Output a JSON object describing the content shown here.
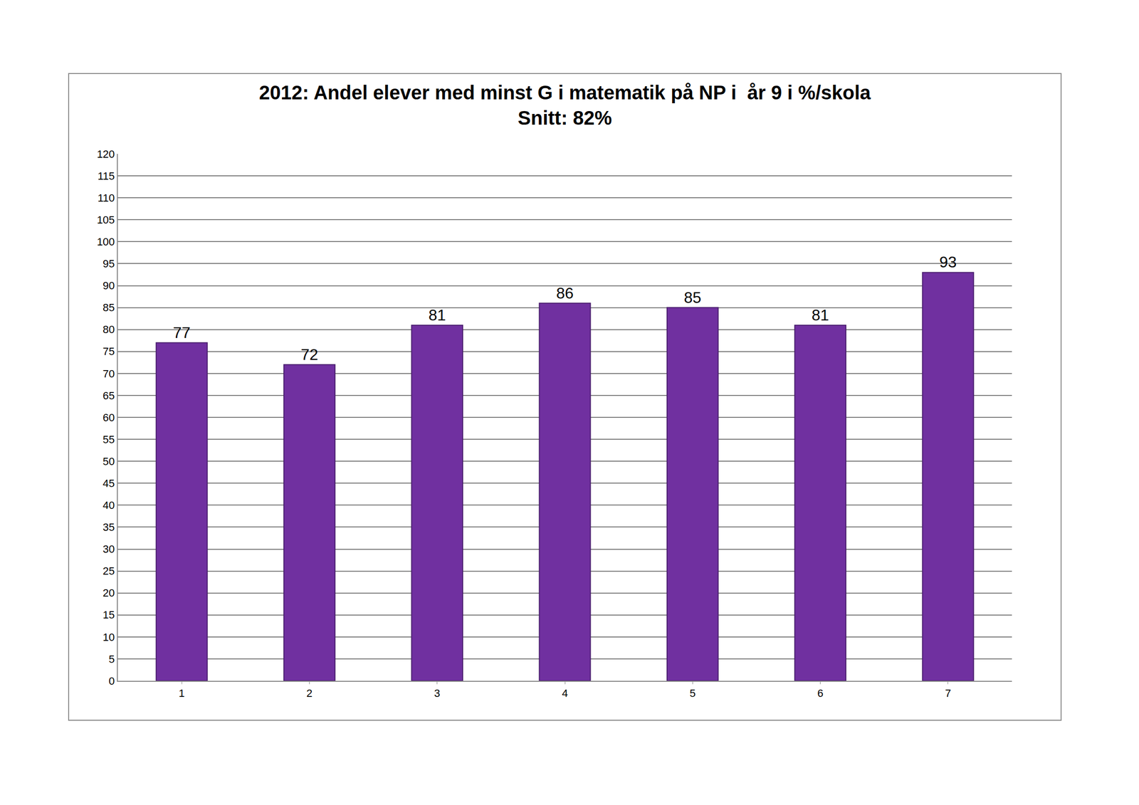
{
  "chart_data": {
    "type": "bar",
    "title": "2012: Andel elever med minst G i matematik på NP i  år 9 i %/skola",
    "subtitle": "Snitt: 82%",
    "categories": [
      "1",
      "2",
      "3",
      "4",
      "5",
      "6",
      "7"
    ],
    "values": [
      77,
      72,
      81,
      86,
      85,
      81,
      93
    ],
    "color": "#7030a0",
    "ylim": [
      0,
      120
    ],
    "yticks": [
      0,
      5,
      10,
      15,
      20,
      25,
      30,
      35,
      40,
      45,
      50,
      55,
      60,
      65,
      70,
      75,
      80,
      85,
      90,
      95,
      100,
      105,
      110,
      115,
      120
    ],
    "grid": true,
    "data_labels": true
  }
}
